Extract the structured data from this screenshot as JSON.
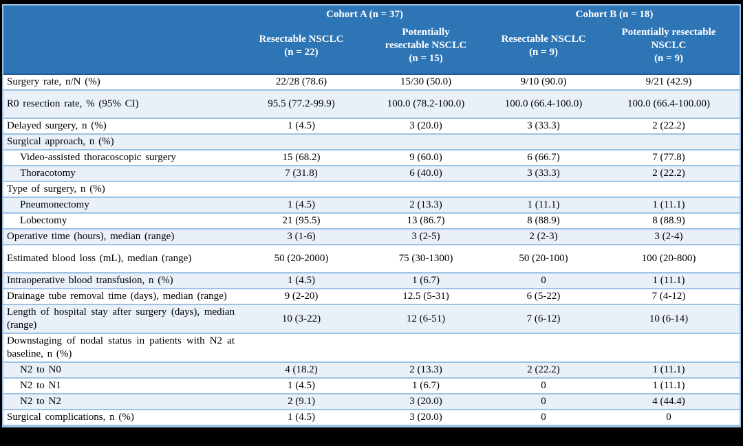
{
  "colors": {
    "header_bg": "#2E75B6",
    "header_text": "#FFFFFF",
    "row_alt_bg": "#E9F0F8",
    "row_border": "#9CC2E5",
    "header_bottom_border": "#24579B",
    "frame_bg": "#000000"
  },
  "table": {
    "header": {
      "cohorts": [
        {
          "label": "Cohort A (n = 37)"
        },
        {
          "label": "Cohort B (n = 18)"
        }
      ],
      "columns": [
        {
          "title": "Resectable NSCLC",
          "n": "(n = 22)"
        },
        {
          "title": "Potentially\nresectable NSCLC",
          "n": "(n = 15)"
        },
        {
          "title": "Resectable NSCLC",
          "n": "(n = 9)"
        },
        {
          "title": "Potentially resectable\nNSCLC",
          "n": "(n = 9)"
        }
      ]
    },
    "rows": [
      {
        "label": "Surgery rate, n/N (%)",
        "indent": false,
        "values": [
          "22/28 (78.6)",
          "15/30 (50.0)",
          "9/10 (90.0)",
          "9/21 (42.9)"
        ]
      },
      {
        "label": "R0 resection rate, % (95% CI)",
        "indent": false,
        "values": [
          "95.5 (77.2-99.9)",
          "100.0 (78.2-100.0)",
          "100.0 (66.4-100.0)",
          "100.0 (66.4-100.00)"
        ]
      },
      {
        "label": "Delayed surgery, n (%)",
        "indent": false,
        "values": [
          "1 (4.5)",
          "3 (20.0)",
          "3 (33.3)",
          "2 (22.2)"
        ]
      },
      {
        "label": "Surgical approach, n (%)",
        "indent": false,
        "values": [
          "",
          "",
          "",
          ""
        ]
      },
      {
        "label": "Video-assisted thoracoscopic surgery",
        "indent": true,
        "values": [
          "15 (68.2)",
          "9 (60.0)",
          "6 (66.7)",
          "7 (77.8)"
        ]
      },
      {
        "label": "Thoracotomy",
        "indent": true,
        "values": [
          "7 (31.8)",
          "6 (40.0)",
          "3 (33.3)",
          "2 (22.2)"
        ]
      },
      {
        "label": "Type of surgery, n (%)",
        "indent": false,
        "values": [
          "",
          "",
          "",
          ""
        ]
      },
      {
        "label": "Pneumonectomy",
        "indent": true,
        "values": [
          "1 (4.5)",
          "2 (13.3)",
          "1 (11.1)",
          "1 (11.1)"
        ]
      },
      {
        "label": "Lobectomy",
        "indent": true,
        "values": [
          "21 (95.5)",
          "13 (86.7)",
          "8 (88.9)",
          "8 (88.9)"
        ]
      },
      {
        "label": "Operative time (hours), median (range)",
        "indent": false,
        "values": [
          "3 (1-6)",
          "3 (2-5)",
          "2 (2-3)",
          "3 (2-4)"
        ]
      },
      {
        "label": "Estimated blood loss (mL), median (range)",
        "indent": false,
        "values": [
          "50 (20-2000)",
          "75 (30-1300)",
          "50 (20-100)",
          "100 (20-800)"
        ]
      },
      {
        "label": "Intraoperative blood transfusion, n (%)",
        "indent": false,
        "values": [
          "1 (4.5)",
          "1 (6.7)",
          "0",
          "1 (11.1)"
        ]
      },
      {
        "label": "Drainage tube removal time (days), median (range)",
        "indent": false,
        "values": [
          "9 (2-20)",
          "12.5 (5-31)",
          "6 (5-22)",
          "7 (4-12)"
        ]
      },
      {
        "label": "Length of hospital stay after surgery (days), median (range)",
        "indent": false,
        "values": [
          "10 (3-22)",
          "12 (6-51)",
          "7 (6-12)",
          "10 (6-14)"
        ]
      },
      {
        "label": "Downstaging of nodal status in patients with N2 at baseline, n (%)",
        "indent": false,
        "values": [
          "",
          "",
          "",
          ""
        ]
      },
      {
        "label": "N2 to N0",
        "indent": true,
        "values": [
          "4 (18.2)",
          "2 (13.3)",
          "2 (22.2)",
          "1 (11.1)"
        ]
      },
      {
        "label": "N2 to N1",
        "indent": true,
        "values": [
          "1 (4.5)",
          "1 (6.7)",
          "0",
          "1 (11.1)"
        ]
      },
      {
        "label": "N2 to N2",
        "indent": true,
        "values": [
          "2 (9.1)",
          "3 (20.0)",
          "0",
          "4 (44.4)"
        ]
      },
      {
        "label": "Surgical complications, n (%)",
        "indent": false,
        "values": [
          "1 (4.5)",
          "3 (20.0)",
          "0",
          "0"
        ]
      }
    ]
  }
}
